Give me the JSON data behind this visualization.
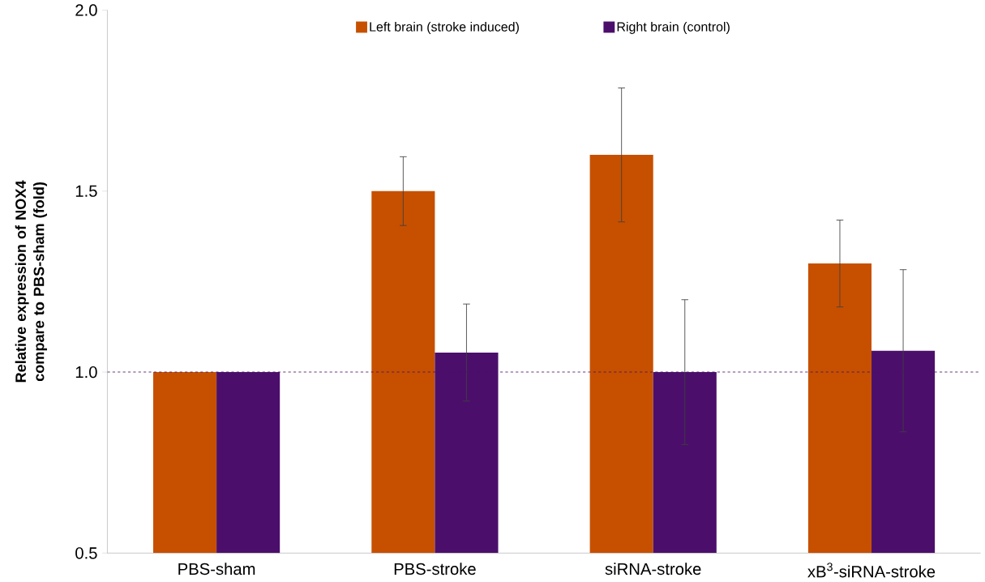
{
  "chart_data": {
    "type": "bar",
    "ylabel": "Relative expression of NOX4 compare to PBS-sham (fold)",
    "categories": [
      "PBS-sham",
      "PBS-stroke",
      "siRNA-stroke",
      "xB$^{3}$-siRNA-stroke"
    ],
    "series": [
      {
        "name": "Left brain (stroke induced)",
        "color": "#c65000",
        "values": [
          1.0,
          1.5,
          1.6,
          1.3
        ],
        "errors": [
          null,
          0.095,
          0.185,
          0.12
        ]
      },
      {
        "name": "Right brain (control)",
        "color": "#4b0f6b",
        "values": [
          1.0,
          1.054,
          1.0,
          1.059
        ],
        "errors": [
          null,
          0.134,
          0.2,
          0.224
        ]
      }
    ],
    "ylim": [
      0.5,
      2.0
    ],
    "yticks": [
      0.5,
      {
        "value": 1,
        "label": "1.0"
      },
      1.5,
      {
        "value": 2,
        "label": "2.0"
      }
    ],
    "ref_lines": [
      {
        "axis": "y",
        "value": 1,
        "color": "#4b0f6b",
        "line_style": "dashed"
      }
    ],
    "legend": "top",
    "grid": false
  }
}
